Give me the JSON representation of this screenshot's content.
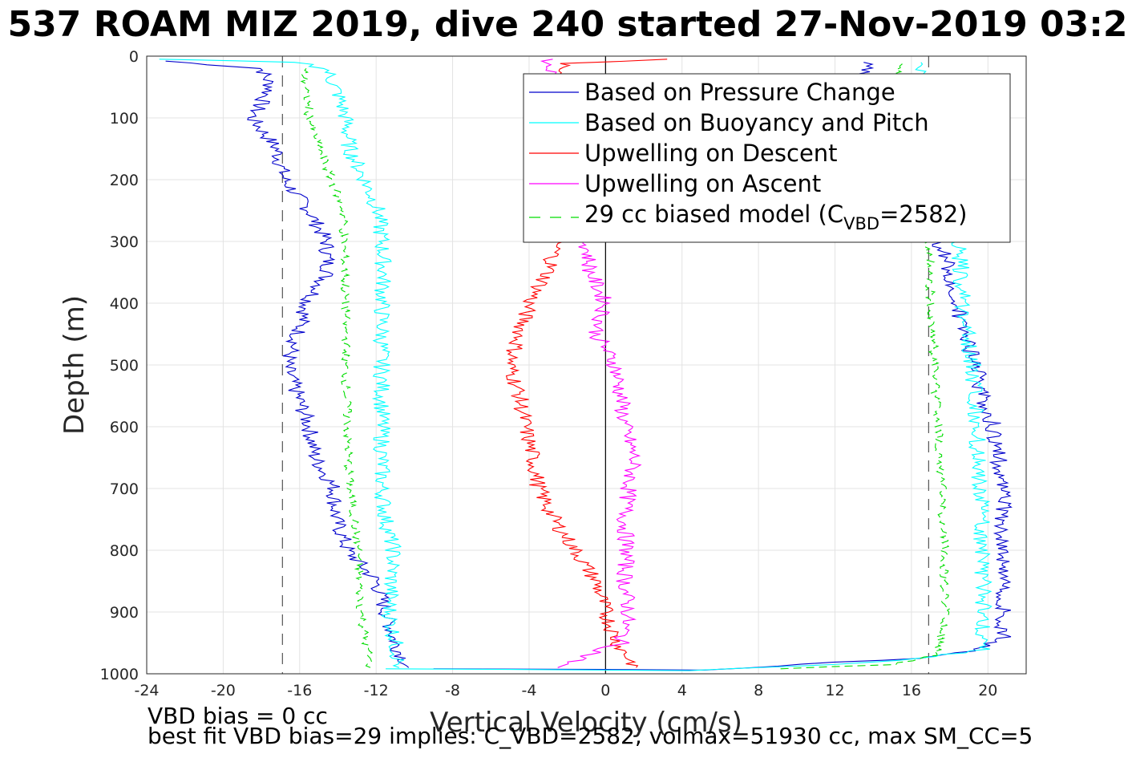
{
  "title": "537 ROAM MIZ 2019, dive 240 started 27-Nov-2019 03:2",
  "footer": {
    "line1": "VBD bias = 0 cc",
    "line2": "best fit VBD bias=29 implies: C_VBD=2582, volmax=51930 cc, max SM_CC=5"
  },
  "chart_data": {
    "type": "line",
    "xlabel": "Vertical Velocity (cm/s)",
    "ylabel": "Depth (m)",
    "xlim": [
      -24,
      22
    ],
    "ylim": [
      0,
      1000
    ],
    "y_reversed": true,
    "grid": true,
    "legend_position": "top-right",
    "xticks": [
      "-24",
      "-20",
      "-16",
      "-12",
      "-8",
      "-4",
      "0",
      "4",
      "8",
      "12",
      "16",
      "20"
    ],
    "xtick_values": [
      -24,
      -20,
      -16,
      -12,
      -8,
      -4,
      0,
      4,
      8,
      12,
      16,
      20
    ],
    "yticks": [
      "0",
      "100",
      "200",
      "300",
      "400",
      "500",
      "600",
      "700",
      "800",
      "900",
      "1000"
    ],
    "ytick_values": [
      0,
      100,
      200,
      300,
      400,
      500,
      600,
      700,
      800,
      900,
      1000
    ],
    "reference_lines": [
      {
        "x": 0,
        "style": "solid",
        "color": "#000000"
      },
      {
        "x": -16.9,
        "style": "dashed",
        "color": "#555555"
      },
      {
        "x": 16.9,
        "style": "dashed",
        "color": "#555555"
      }
    ],
    "series": [
      {
        "name": "Based on Pressure Change",
        "color": "#0000cc",
        "style": "solid",
        "descent": [
          [
            -23,
            8
          ],
          [
            -18,
            20
          ],
          [
            -17.5,
            50
          ],
          [
            -18.5,
            100
          ],
          [
            -17.2,
            150
          ],
          [
            -16.8,
            200
          ],
          [
            -15.5,
            250
          ],
          [
            -14.6,
            300
          ],
          [
            -14.5,
            350
          ],
          [
            -15.6,
            400
          ],
          [
            -16.1,
            450
          ],
          [
            -16.7,
            500
          ],
          [
            -16.1,
            550
          ],
          [
            -15.5,
            600
          ],
          [
            -15.2,
            650
          ],
          [
            -14.2,
            700
          ],
          [
            -14.1,
            750
          ],
          [
            -13.5,
            800
          ],
          [
            -12,
            850
          ],
          [
            -11.5,
            900
          ],
          [
            -11,
            950
          ],
          [
            -10.3,
            990
          ]
        ],
        "ascent": [
          [
            -9,
            992
          ],
          [
            0,
            993
          ],
          [
            5,
            994
          ],
          [
            16,
            975
          ],
          [
            19.7,
            960
          ],
          [
            20.8,
            940
          ],
          [
            20.8,
            900
          ],
          [
            20.8,
            800
          ],
          [
            20.8,
            700
          ],
          [
            20.3,
            600
          ],
          [
            19.7,
            550
          ],
          [
            19.4,
            500
          ],
          [
            18.7,
            450
          ],
          [
            18.4,
            400
          ],
          [
            18,
            350
          ],
          [
            17.7,
            320
          ],
          [
            16.5,
            250
          ],
          [
            15.2,
            150
          ],
          [
            13.8,
            50
          ],
          [
            13.5,
            10
          ]
        ]
      },
      {
        "name": "Based on Buoyancy and Pitch",
        "color": "#00ffff",
        "style": "solid",
        "descent": [
          [
            -23.5,
            5
          ],
          [
            -16,
            10
          ],
          [
            -14.6,
            20
          ],
          [
            -14,
            60
          ],
          [
            -13.6,
            100
          ],
          [
            -13.4,
            150
          ],
          [
            -12.6,
            200
          ],
          [
            -11.9,
            250
          ],
          [
            -11.7,
            300
          ],
          [
            -11.6,
            350
          ],
          [
            -11.7,
            400
          ],
          [
            -11.7,
            500
          ],
          [
            -11.7,
            600
          ],
          [
            -11.7,
            700
          ],
          [
            -11.5,
            750
          ],
          [
            -11.1,
            800
          ],
          [
            -11.3,
            900
          ],
          [
            -11,
            950
          ],
          [
            -10.8,
            990
          ]
        ],
        "ascent": [
          [
            -11.5,
            992
          ],
          [
            -5,
            993
          ],
          [
            4,
            995
          ],
          [
            11.7,
            985
          ],
          [
            16.5,
            975
          ],
          [
            19.7,
            960
          ],
          [
            19.8,
            900
          ],
          [
            19.7,
            800
          ],
          [
            19.6,
            700
          ],
          [
            19.4,
            600
          ],
          [
            19.2,
            500
          ],
          [
            18.7,
            400
          ],
          [
            18.5,
            300
          ],
          [
            17,
            250
          ],
          [
            15.5,
            150
          ],
          [
            16.2,
            60
          ],
          [
            16.5,
            10
          ]
        ]
      },
      {
        "name": "Upwelling on Descent",
        "color": "#ff0000",
        "style": "solid",
        "descent": [
          [
            3.5,
            5
          ],
          [
            -2,
            12
          ],
          [
            -2.5,
            60
          ],
          [
            -3.5,
            100
          ],
          [
            -2.5,
            180
          ],
          [
            -2.5,
            250
          ],
          [
            -2.5,
            300
          ],
          [
            -3,
            350
          ],
          [
            -4,
            400
          ],
          [
            -4.5,
            450
          ],
          [
            -5,
            500
          ],
          [
            -4.5,
            550
          ],
          [
            -4.2,
            600
          ],
          [
            -3.8,
            650
          ],
          [
            -3.5,
            700
          ],
          [
            -2.7,
            750
          ],
          [
            -1.6,
            800
          ],
          [
            -0.5,
            850
          ],
          [
            0,
            900
          ],
          [
            0.6,
            950
          ],
          [
            1.6,
            990
          ]
        ],
        "ascent": []
      },
      {
        "name": "Upwelling on Ascent",
        "color": "#ff00ff",
        "style": "solid",
        "descent": [
          [
            -3.2,
            5
          ],
          [
            -2.5,
            50
          ],
          [
            -2,
            100
          ],
          [
            -2,
            200
          ],
          [
            -1,
            300
          ],
          [
            -0.8,
            350
          ],
          [
            0,
            400
          ],
          [
            -0.5,
            450
          ],
          [
            0.5,
            500
          ],
          [
            0.8,
            550
          ],
          [
            1,
            600
          ],
          [
            1.5,
            650
          ],
          [
            1.2,
            700
          ],
          [
            1,
            750
          ],
          [
            1.1,
            800
          ],
          [
            1,
            850
          ],
          [
            1.2,
            900
          ],
          [
            0.8,
            950
          ],
          [
            -2.5,
            990
          ]
        ],
        "ascent": []
      },
      {
        "name": "29 cc biased model",
        "name_sub": "VBD",
        "name_tail": "=2582)",
        "name_head": "29 cc biased model (C",
        "color": "#00dd00",
        "style": "dashed",
        "descent": [
          [
            -15.8,
            20
          ],
          [
            -15.5,
            100
          ],
          [
            -14.6,
            180
          ],
          [
            -13.7,
            250
          ],
          [
            -13.7,
            300
          ],
          [
            -13.6,
            400
          ],
          [
            -13.6,
            500
          ],
          [
            -13.5,
            600
          ],
          [
            -13.4,
            700
          ],
          [
            -12.9,
            800
          ],
          [
            -12.8,
            900
          ],
          [
            -12.3,
            990
          ]
        ],
        "ascent": [
          [
            9,
            992
          ],
          [
            15,
            985
          ],
          [
            17.3,
            970
          ],
          [
            17.8,
            900
          ],
          [
            17.7,
            800
          ],
          [
            17.6,
            700
          ],
          [
            17.4,
            600
          ],
          [
            17.2,
            500
          ],
          [
            17,
            400
          ],
          [
            16.9,
            300
          ],
          [
            16.2,
            200
          ],
          [
            15.2,
            100
          ],
          [
            15.3,
            10
          ]
        ]
      }
    ]
  }
}
